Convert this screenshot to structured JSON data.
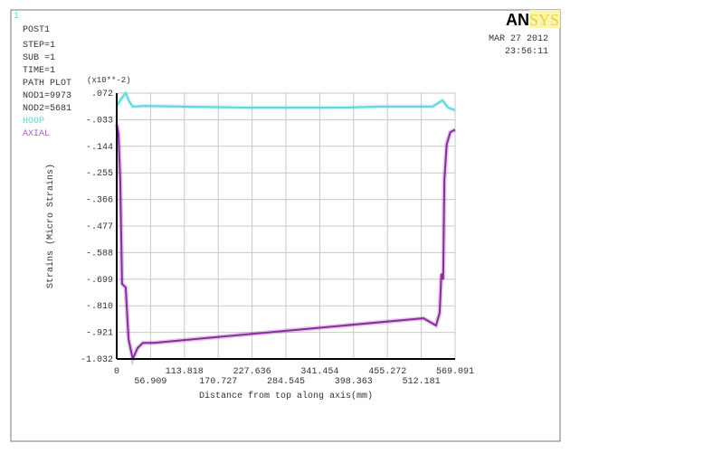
{
  "window_number": "1",
  "info": {
    "post": "POST1",
    "step": "STEP=1",
    "sub": "SUB =1",
    "time": "TIME=1",
    "plot": "PATH PLOT",
    "nod1": "NOD1=9973",
    "nod2": "NOD2=5681"
  },
  "logo": {
    "text_dark": "AN",
    "text_light": "SYS",
    "accent": "#f2e23a"
  },
  "date": "MAR 27 2012",
  "clock": "23:56:11",
  "colors": {
    "hoop": "#5fd6dc",
    "axial": "#8a2aa0",
    "grid": "#c8c8c8",
    "axis": "#000000"
  },
  "chart_data": {
    "type": "line",
    "xlabel": "Distance from top along axis(mm)",
    "ylabel": "Strains (Micro Strains)",
    "y_multiplier": "(x10**-2)",
    "xlim": [
      0,
      569.091
    ],
    "ylim": [
      -1.032,
      0.072
    ],
    "grid": true,
    "legend_placement": "top-left",
    "x_ticks": [
      "0",
      "56.909",
      "113.818",
      "170.727",
      "227.636",
      "284.545",
      "341.454",
      "398.363",
      "455.272",
      "512.181",
      "569.091"
    ],
    "y_ticks": [
      ".072",
      "-.033",
      "-.144",
      "-.255",
      "-.366",
      "-.477",
      "-.588",
      "-.699",
      "-.810",
      "-.921",
      "-1.032"
    ],
    "series": [
      {
        "name": "HOOP",
        "color": "#5fd6dc",
        "x": [
          0,
          9,
          15,
          21,
          27,
          47,
          108,
          215,
          382,
          443,
          531,
          548,
          557,
          569
        ],
        "y": [
          0.019,
          0.053,
          0.072,
          0.038,
          0.016,
          0.019,
          0.016,
          0.012,
          0.012,
          0.016,
          0.016,
          0.042,
          0.012,
          0.001
        ]
      },
      {
        "name": "AXIAL",
        "color": "#8a2aa0",
        "x": [
          0,
          3,
          6,
          9,
          15,
          20,
          27,
          35,
          44,
          62,
          516,
          537,
          543,
          546,
          549,
          551,
          555,
          561,
          569
        ],
        "y": [
          -0.056,
          -0.1,
          -0.29,
          -0.72,
          -0.735,
          -0.95,
          -1.032,
          -0.987,
          -0.965,
          -0.965,
          -0.863,
          -0.893,
          -0.84,
          -0.68,
          -0.7,
          -0.29,
          -0.14,
          -0.09,
          -0.08
        ]
      }
    ]
  }
}
